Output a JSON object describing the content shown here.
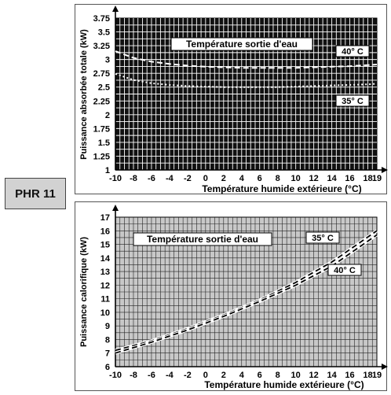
{
  "model_label": "PHR 11",
  "chart_data": [
    {
      "type": "line",
      "xlabel": "Température humide extérieure (°C)",
      "ylabel": "Puissance absorbée totale (kW)",
      "annotation": "Température sortie d'eau",
      "xlim": [
        -10,
        19
      ],
      "ylim": [
        1,
        3.75
      ],
      "x_ticks": [
        -10,
        -8,
        -6,
        -4,
        -2,
        0,
        2,
        4,
        6,
        8,
        10,
        12,
        14,
        16,
        18,
        19
      ],
      "y_ticks": [
        1,
        1.25,
        1.5,
        1.75,
        2,
        2.25,
        2.5,
        2.75,
        3,
        3.25,
        3.5,
        3.75
      ],
      "x_tick_labels": [
        "-10",
        "-8",
        "-6",
        "-4",
        "-2",
        "0",
        "2",
        "4",
        "6",
        "8",
        "10",
        "12",
        "14",
        "16",
        "18",
        "19"
      ],
      "y_tick_labels": [
        "1",
        "1.25",
        "1.5",
        "1.75",
        "2",
        "2.25",
        "2.5",
        "2.75",
        "3",
        "3.25",
        "3.5",
        "3.75"
      ],
      "grid": true,
      "background": "#111111",
      "series": [
        {
          "name": "40° C",
          "style": "dashed",
          "x": [
            -10,
            -8,
            -6,
            -4,
            -2,
            0,
            2,
            4,
            6,
            8,
            10,
            12,
            14,
            16,
            18,
            19
          ],
          "y": [
            3.15,
            3.03,
            2.96,
            2.92,
            2.89,
            2.87,
            2.86,
            2.85,
            2.85,
            2.85,
            2.85,
            2.86,
            2.87,
            2.88,
            2.9,
            2.91
          ]
        },
        {
          "name": "35° C",
          "style": "dotted",
          "x": [
            -10,
            -8,
            -6,
            -4,
            -2,
            0,
            2,
            4,
            6,
            8,
            10,
            12,
            14,
            16,
            18,
            19
          ],
          "y": [
            2.74,
            2.63,
            2.57,
            2.54,
            2.52,
            2.51,
            2.5,
            2.5,
            2.5,
            2.5,
            2.51,
            2.52,
            2.53,
            2.54,
            2.55,
            2.56
          ]
        }
      ]
    },
    {
      "type": "line",
      "xlabel": "Température humide extérieure (°C)",
      "ylabel": "Puissance calorifique (kW)",
      "annotation": "Température sortie d'eau",
      "xlim": [
        -10,
        19
      ],
      "ylim": [
        6,
        17
      ],
      "x_ticks": [
        -10,
        -8,
        -6,
        -4,
        -2,
        0,
        2,
        4,
        6,
        8,
        10,
        12,
        14,
        16,
        18,
        19
      ],
      "y_ticks": [
        6,
        7,
        8,
        9,
        10,
        11,
        12,
        13,
        14,
        15,
        16,
        17
      ],
      "x_tick_labels": [
        "-10",
        "-8",
        "-6",
        "-4",
        "-2",
        "0",
        "2",
        "4",
        "6",
        "8",
        "10",
        "12",
        "14",
        "16",
        "18",
        "19"
      ],
      "y_tick_labels": [
        "6",
        "7",
        "8",
        "9",
        "10",
        "11",
        "12",
        "13",
        "14",
        "15",
        "16",
        "17"
      ],
      "grid": true,
      "background": "#c8c8c8",
      "series": [
        {
          "name": "35° C",
          "style": "dashed",
          "x": [
            -10,
            -6,
            -2,
            2,
            6,
            10,
            14,
            19
          ],
          "y": [
            7.2,
            7.9,
            8.8,
            9.8,
            10.9,
            12.2,
            13.7,
            16.0
          ]
        },
        {
          "name": "40° C",
          "style": "dashed",
          "x": [
            -10,
            -6,
            -2,
            2,
            6,
            10,
            14,
            19
          ],
          "y": [
            7.0,
            7.8,
            8.7,
            9.7,
            10.8,
            12.0,
            13.4,
            15.7
          ]
        }
      ]
    }
  ]
}
